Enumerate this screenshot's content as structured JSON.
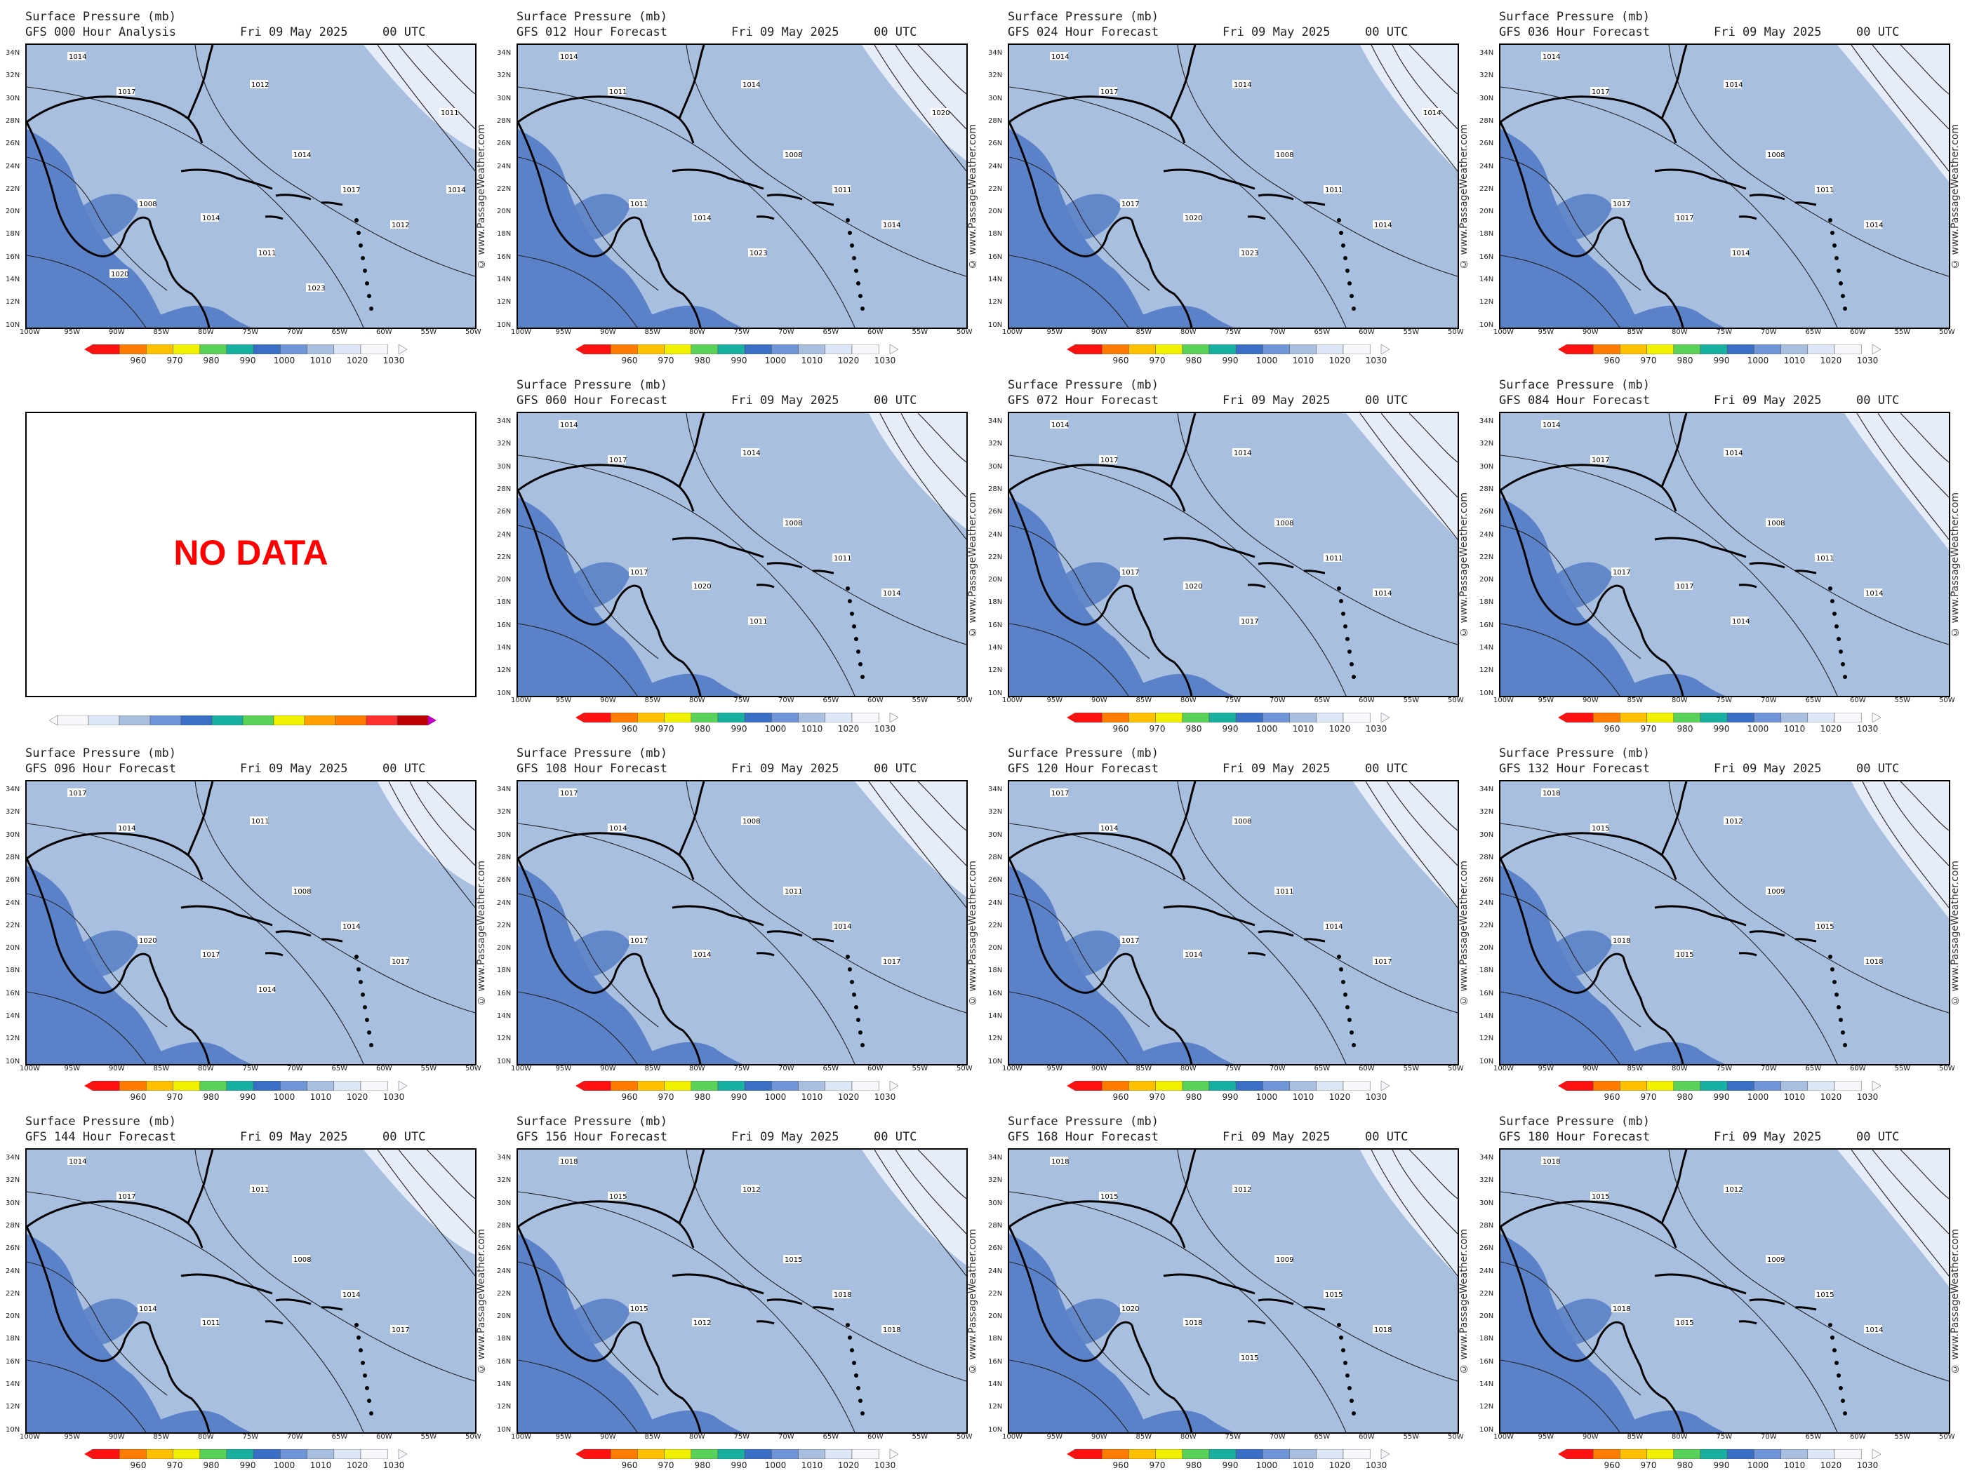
{
  "header_title": "Surface Pressure (mb)",
  "date": "Fri 09 May 2025",
  "utc": "00 UTC",
  "credit": "© www.PassageWeather.com",
  "nodata_label": "NO DATA",
  "lat_labels": [
    "34N",
    "32N",
    "30N",
    "28N",
    "26N",
    "24N",
    "22N",
    "20N",
    "18N",
    "16N",
    "14N",
    "12N",
    "10N"
  ],
  "lon_labels": [
    "100W",
    "95W",
    "90W",
    "85W",
    "80W",
    "75W",
    "70W",
    "65W",
    "60W",
    "55W",
    "50W"
  ],
  "colorbar_labels": [
    "960",
    "970",
    "980",
    "990",
    "1000",
    "1010",
    "1020",
    "1030"
  ],
  "colorbar_colors": [
    "#ff1010",
    "#ff7a00",
    "#ffc000",
    "#f0f000",
    "#5ad25a",
    "#18b0a0",
    "#3a6fc8",
    "#6f95d8",
    "#a9bfe0",
    "#dce6f4",
    "#f6f8fc"
  ],
  "palette": {
    "deep": "#5b82c8",
    "mid": "#a9bfe0",
    "high": "#e6edf8",
    "land_line": "#000000",
    "nodata_text": "#ff0000"
  },
  "panels": [
    {
      "subtitle": "GFS 000 Hour Analysis",
      "labels": [
        "1014",
        "1017",
        "1012",
        "1014",
        "1017",
        "1012",
        "1008",
        "1014",
        "1011",
        "1011",
        "1014",
        "1020",
        "1023"
      ]
    },
    {
      "subtitle": "GFS 012 Hour Forecast",
      "labels": [
        "1014",
        "1011",
        "1014",
        "1008",
        "1011",
        "1014",
        "1011",
        "1014",
        "1023",
        "1020"
      ]
    },
    {
      "subtitle": "GFS 024 Hour Forecast",
      "labels": [
        "1014",
        "1017",
        "1014",
        "1008",
        "1011",
        "1014",
        "1017",
        "1020",
        "1023",
        "1014"
      ]
    },
    {
      "subtitle": "GFS 036 Hour Forecast",
      "labels": [
        "1014",
        "1017",
        "1014",
        "1008",
        "1011",
        "1014",
        "1017",
        "1017",
        "1014"
      ]
    },
    {
      "subtitle": "NO DATA",
      "labels": []
    },
    {
      "subtitle": "GFS 060 Hour Forecast",
      "labels": [
        "1014",
        "1017",
        "1014",
        "1008",
        "1011",
        "1014",
        "1017",
        "1020",
        "1011"
      ]
    },
    {
      "subtitle": "GFS 072 Hour Forecast",
      "labels": [
        "1014",
        "1017",
        "1014",
        "1008",
        "1011",
        "1014",
        "1017",
        "1020",
        "1017"
      ]
    },
    {
      "subtitle": "GFS 084 Hour Forecast",
      "labels": [
        "1014",
        "1017",
        "1014",
        "1008",
        "1011",
        "1014",
        "1017",
        "1017",
        "1014"
      ]
    },
    {
      "subtitle": "GFS 096 Hour Forecast",
      "labels": [
        "1017",
        "1014",
        "1011",
        "1008",
        "1014",
        "1017",
        "1020",
        "1017",
        "1014"
      ]
    },
    {
      "subtitle": "GFS 108 Hour Forecast",
      "labels": [
        "1017",
        "1014",
        "1008",
        "1011",
        "1014",
        "1017",
        "1017",
        "1014"
      ]
    },
    {
      "subtitle": "GFS 120 Hour Forecast",
      "labels": [
        "1017",
        "1014",
        "1008",
        "1011",
        "1014",
        "1017",
        "1017",
        "1014"
      ]
    },
    {
      "subtitle": "GFS 132 Hour Forecast",
      "labels": [
        "1018",
        "1015",
        "1012",
        "1009",
        "1015",
        "1018",
        "1018",
        "1015"
      ]
    },
    {
      "subtitle": "GFS 144 Hour Forecast",
      "labels": [
        "1014",
        "1017",
        "1011",
        "1008",
        "1014",
        "1017",
        "1014",
        "1011"
      ]
    },
    {
      "subtitle": "GFS 156 Hour Forecast",
      "labels": [
        "1018",
        "1015",
        "1012",
        "1015",
        "1018",
        "1018",
        "1015",
        "1012"
      ]
    },
    {
      "subtitle": "GFS 168 Hour Forecast",
      "labels": [
        "1018",
        "1015",
        "1012",
        "1009",
        "1015",
        "1018",
        "1020",
        "1018",
        "1015"
      ]
    },
    {
      "subtitle": "GFS 180 Hour Forecast",
      "labels": [
        "1018",
        "1015",
        "1012",
        "1009",
        "1015",
        "1014",
        "1018",
        "1015"
      ]
    }
  ]
}
